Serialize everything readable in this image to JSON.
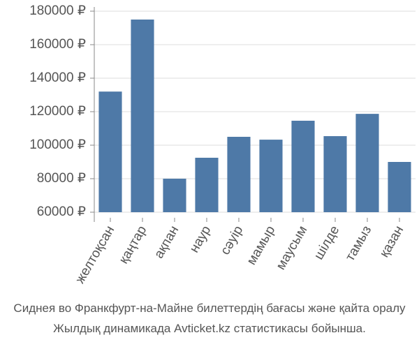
{
  "chart_data": {
    "type": "bar",
    "caption": [
      "Сиднея во Франкфурт-на-Майне билеттердің бағасы және қайта оралу",
      "Жылдық динамикада Avticket.kz статистикасы бойынша."
    ],
    "categories": [
      "желтоқсан",
      "қаңтар",
      "ақпан",
      "наур",
      "сәуір",
      "мамыр",
      "маусым",
      "шілде",
      "тамыз",
      "қазан"
    ],
    "values": [
      132000,
      175000,
      80000,
      92500,
      105000,
      103300,
      114600,
      105400,
      118700,
      90000
    ],
    "color": "#4e79a7",
    "ylim": [
      60000,
      180000
    ],
    "yticks": [
      {
        "value": 60000,
        "label": "60000 ₽"
      },
      {
        "value": 80000,
        "label": "80000 ₽"
      },
      {
        "value": 100000,
        "label": "100000 ₽"
      },
      {
        "value": 120000,
        "label": "120000 ₽"
      },
      {
        "value": 140000,
        "label": "140000 ₽"
      },
      {
        "value": 160000,
        "label": "160000 ₽"
      },
      {
        "value": 180000,
        "label": "180000 ₽"
      }
    ],
    "grid": true
  }
}
